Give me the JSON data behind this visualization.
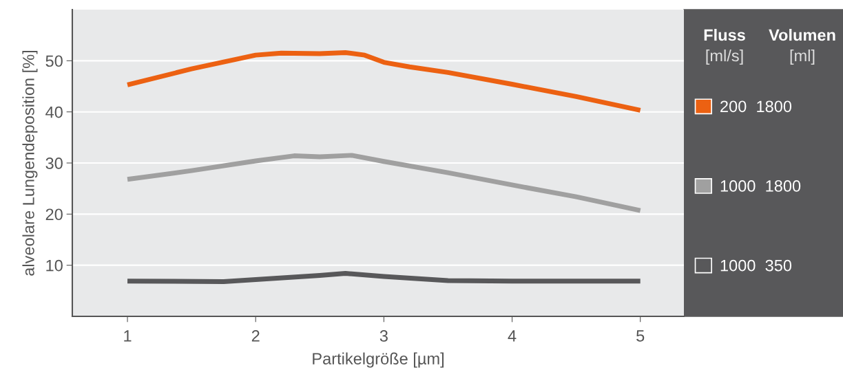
{
  "chart_data": {
    "type": "line",
    "xlabel": "Partikelgröße [µm]",
    "ylabel": "alveolare Lungendeposition [%]",
    "xlim": [
      0.57,
      5.34
    ],
    "xticks": [
      1,
      2,
      3,
      4,
      5
    ],
    "ylim": [
      0,
      60
    ],
    "yticks": [
      10,
      20,
      30,
      40,
      50
    ],
    "grid": "y",
    "legend": "right",
    "line_style": "solid",
    "annotations": [
      "Fluss\n[ml/s]",
      "Volumen\n[ml]"
    ],
    "series": [
      {
        "name": "200  1800",
        "color": "#ec6112",
        "x": [
          1,
          1.5,
          2,
          2.2,
          2.5,
          2.7,
          2.85,
          3,
          3.2,
          3.5,
          4,
          4.5,
          5
        ],
        "values": [
          45.3,
          48.4,
          51.1,
          51.5,
          51.4,
          51.6,
          51.1,
          49.7,
          48.8,
          47.7,
          45.4,
          43.0,
          40.3
        ]
      },
      {
        "name": "1000  1800",
        "color": "#a0a0a0",
        "x": [
          1,
          1.5,
          2,
          2.3,
          2.5,
          2.75,
          3,
          3.5,
          4,
          4.5,
          5
        ],
        "values": [
          26.8,
          28.5,
          30.4,
          31.4,
          31.2,
          31.5,
          30.3,
          28.1,
          25.7,
          23.4,
          20.7
        ]
      },
      {
        "name": "1000  350",
        "color": "#58585a",
        "x": [
          1,
          1.75,
          2,
          2.5,
          2.7,
          3,
          3.5,
          4,
          5
        ],
        "values": [
          6.9,
          6.8,
          7.2,
          8.0,
          8.4,
          7.8,
          7.0,
          6.9,
          6.9
        ]
      }
    ]
  }
}
